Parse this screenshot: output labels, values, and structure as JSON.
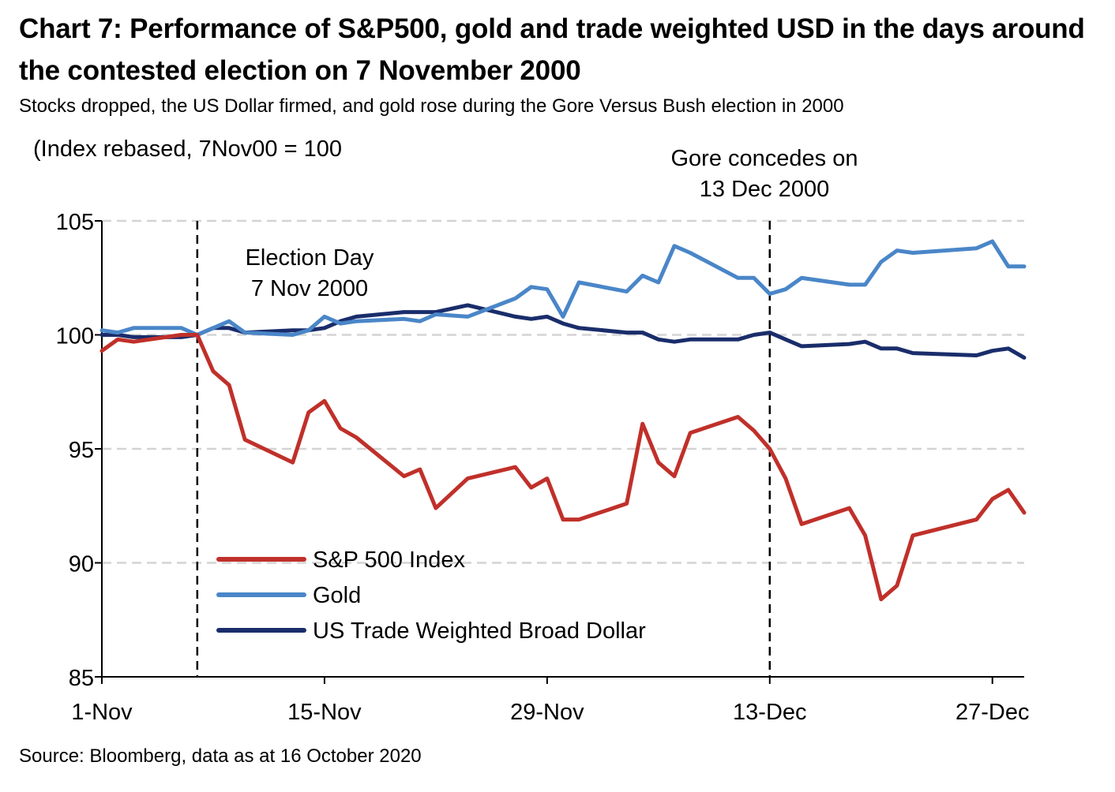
{
  "title": "Chart 7: Performance of S&P500, gold and trade weighted USD in the days around the contested election on 7 November 2000",
  "subtitle": "Stocks dropped, the US Dollar firmed, and gold rose during the Gore Versus Bush election in 2000",
  "source": "Source: Bloomberg, data as at 16 October 2020",
  "chart_data": {
    "type": "line",
    "ylabel": "(Index rebased, 7Nov00 = 100",
    "xlabel": "",
    "ylim": [
      85,
      105
    ],
    "y_ticks": [
      85,
      90,
      95,
      100,
      105
    ],
    "x_range": [
      "2000-11-01",
      "2000-12-29"
    ],
    "x_ticks": [
      {
        "date": "2000-11-01",
        "label": "1-Nov"
      },
      {
        "date": "2000-11-15",
        "label": "15-Nov"
      },
      {
        "date": "2000-11-29",
        "label": "29-Nov"
      },
      {
        "date": "2000-12-13",
        "label": "13-Dec"
      },
      {
        "date": "2000-12-27",
        "label": "27-Dec"
      }
    ],
    "grid": "horizontal-dashed",
    "legend_position": "bottom-left",
    "annotations": [
      {
        "date": "2000-11-07",
        "lines": [
          "Election Day",
          "7 Nov 2000"
        ]
      },
      {
        "date": "2000-12-13",
        "lines": [
          "Gore concedes on",
          "13 Dec 2000"
        ]
      }
    ],
    "x": [
      "2000-11-01",
      "2000-11-02",
      "2000-11-03",
      "2000-11-06",
      "2000-11-07",
      "2000-11-08",
      "2000-11-09",
      "2000-11-10",
      "2000-11-13",
      "2000-11-14",
      "2000-11-15",
      "2000-11-16",
      "2000-11-17",
      "2000-11-20",
      "2000-11-21",
      "2000-11-22",
      "2000-11-24",
      "2000-11-27",
      "2000-11-28",
      "2000-11-29",
      "2000-11-30",
      "2000-12-01",
      "2000-12-04",
      "2000-12-05",
      "2000-12-06",
      "2000-12-07",
      "2000-12-08",
      "2000-12-11",
      "2000-12-12",
      "2000-12-13",
      "2000-12-14",
      "2000-12-15",
      "2000-12-18",
      "2000-12-19",
      "2000-12-20",
      "2000-12-21",
      "2000-12-22",
      "2000-12-26",
      "2000-12-27",
      "2000-12-28",
      "2000-12-29"
    ],
    "series": [
      {
        "name": "S&P 500 Index",
        "color": "#c0302a",
        "values": [
          99.3,
          99.8,
          99.7,
          100.0,
          100.0,
          98.4,
          97.8,
          95.4,
          94.4,
          96.6,
          97.1,
          95.9,
          95.5,
          93.8,
          94.1,
          92.4,
          93.7,
          94.2,
          93.3,
          93.7,
          91.9,
          91.9,
          92.6,
          96.1,
          94.4,
          93.8,
          95.7,
          96.4,
          95.8,
          95.0,
          93.7,
          91.7,
          92.4,
          91.2,
          88.4,
          89.0,
          91.2,
          91.9,
          92.8,
          93.2,
          92.2
        ]
      },
      {
        "name": "Gold",
        "color": "#4a86c8",
        "values": [
          100.2,
          100.1,
          100.3,
          100.3,
          100.0,
          100.3,
          100.6,
          100.1,
          100.0,
          100.2,
          100.8,
          100.5,
          100.6,
          100.7,
          100.6,
          100.9,
          100.8,
          101.6,
          102.1,
          102.0,
          100.8,
          102.3,
          101.9,
          102.6,
          102.3,
          103.9,
          103.6,
          102.5,
          102.5,
          101.8,
          102.0,
          102.5,
          102.2,
          102.2,
          103.2,
          103.7,
          103.6,
          103.8,
          104.1,
          103.0,
          103.0
        ]
      },
      {
        "name": "US Trade Weighted Broad Dollar",
        "color": "#1a2d6b",
        "values": [
          100.0,
          100.0,
          99.9,
          99.9,
          100.0,
          100.3,
          100.3,
          100.1,
          100.2,
          100.2,
          100.3,
          100.6,
          100.8,
          101.0,
          101.0,
          101.0,
          101.3,
          100.8,
          100.7,
          100.8,
          100.5,
          100.3,
          100.1,
          100.1,
          99.8,
          99.7,
          99.8,
          99.8,
          100.0,
          100.1,
          99.8,
          99.5,
          99.6,
          99.7,
          99.4,
          99.4,
          99.2,
          99.1,
          99.3,
          99.4,
          99.0
        ]
      }
    ]
  }
}
